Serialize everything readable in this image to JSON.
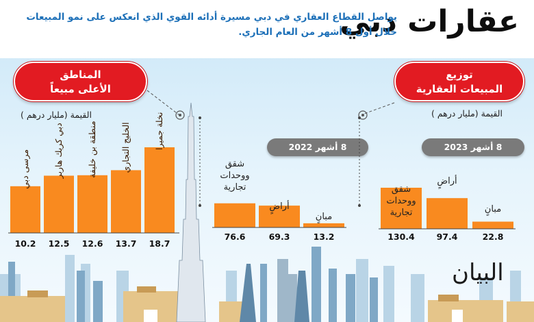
{
  "title": "عقارات دبي",
  "subtitle": "يواصل القطاع العقاري في دبي مسيرة أدائه القوي الذي انعكس على نمو المبيعات خلال أول 8 أشهر من العام الجاري.",
  "logo": "البيان",
  "colors": {
    "bar": "#f98a1f",
    "pill": "#e21b22",
    "period": "#7a7a7a",
    "subtitle": "#1d70b8"
  },
  "top_areas": {
    "heading_line1": "المناطق",
    "heading_line2": "الأعلى مبيعاً",
    "unit": "القيمة (مليار درهم )"
  },
  "distribution": {
    "heading_line1": "توزيع",
    "heading_line2": "المبيعات العقارية",
    "unit": "القيمة (مليار درهم )"
  },
  "chart_data": [
    {
      "type": "bar",
      "title": "المناطق الأعلى مبيعاً",
      "categories": [
        "مرسى دبي",
        "دبي كريك هاربر",
        "منطقة بن خليفة",
        "الخليج التجاري",
        "نخلة جميرا"
      ],
      "values": [
        10.2,
        12.5,
        12.6,
        13.7,
        18.7
      ],
      "ylabel": "القيمة (مليار درهم )",
      "ylim": [
        0,
        20
      ]
    },
    {
      "type": "bar",
      "title": "8 أشهر 2022",
      "categories": [
        "شقق ووحدات تجارية",
        "أراضٍ",
        "مبانٍ"
      ],
      "values": [
        76.6,
        69.3,
        13.2
      ],
      "ylim": [
        0,
        140
      ]
    },
    {
      "type": "bar",
      "title": "8 أشهر 2023",
      "categories": [
        "شقق ووحدات تجارية",
        "أراضٍ",
        "مبانٍ"
      ],
      "values": [
        130.4,
        97.4,
        22.8
      ],
      "ylim": [
        0,
        140
      ]
    }
  ]
}
